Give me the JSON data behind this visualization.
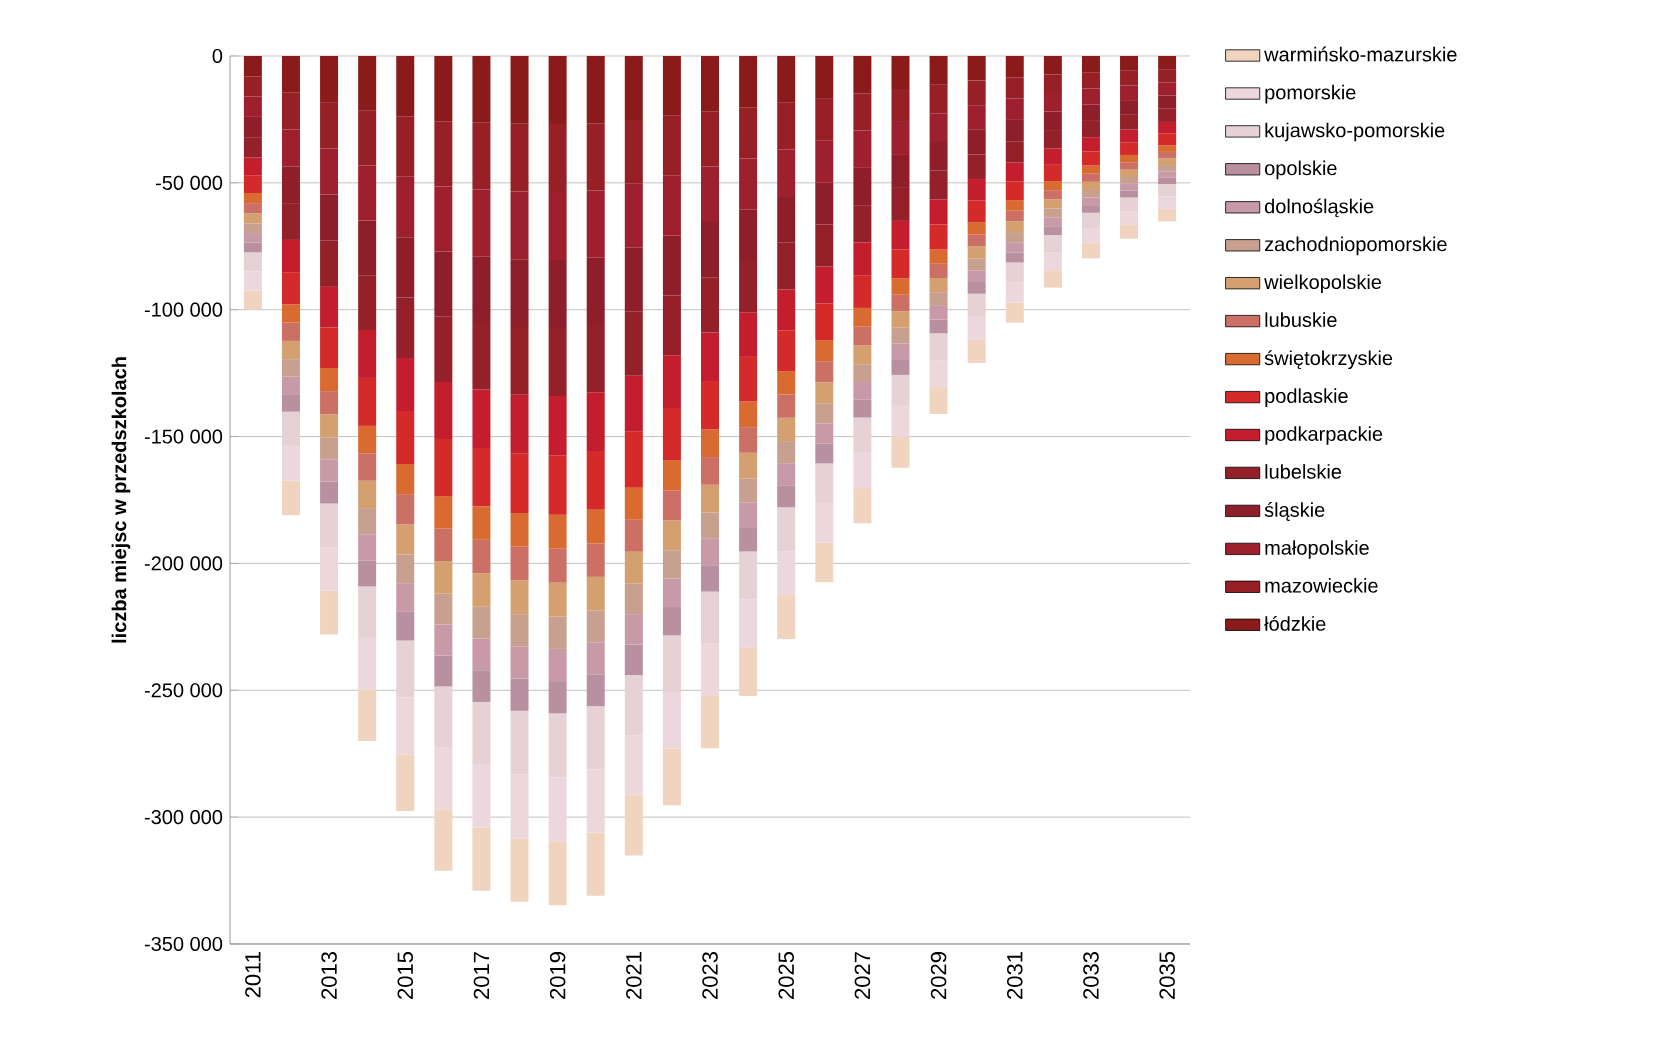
{
  "chart_data": {
    "type": "bar",
    "stacked": true,
    "ylabel": "liczba miejsc w przedszkolach",
    "categories": [
      "2011",
      null,
      "2013",
      null,
      "2015",
      null,
      "2017",
      null,
      "2019",
      null,
      "2021",
      null,
      "2023",
      null,
      "2025",
      null,
      "2027",
      null,
      "2029",
      null,
      "2031",
      null,
      "2033",
      null,
      "2035"
    ],
    "ylim": [
      -350000,
      0
    ],
    "yticks": [
      {
        "value": -350000,
        "label": "-350 000"
      },
      {
        "value": -300000,
        "label": "-300 000"
      },
      {
        "value": -250000,
        "label": "-250 000"
      },
      {
        "value": -200000,
        "label": "-200 000"
      },
      {
        "value": -150000,
        "label": "-150 000"
      },
      {
        "value": -100000,
        "label": "-100 000"
      },
      {
        "value": -50000,
        "label": "-50 000"
      },
      0
    ],
    "grid": "y",
    "legend": "right",
    "series": [
      {
        "name": "łódzkie",
        "color": "#8b1a1a",
        "values": [
          -8000,
          -14500,
          -18200,
          -21600,
          -23800,
          -25700,
          -26300,
          -26700,
          -26800,
          -26500,
          -25200,
          -23600,
          -21800,
          -20200,
          -18400,
          -16600,
          -14700,
          -13000,
          -11300,
          -9700,
          -8400,
          -7300,
          -6400,
          -5800,
          -5200
        ]
      },
      {
        "name": "mazowieckie",
        "color": "#962026",
        "values": [
          -8000,
          -14500,
          -18200,
          -21600,
          -23800,
          -25700,
          -26300,
          -26700,
          -26800,
          -26500,
          -25200,
          -23600,
          -21800,
          -20200,
          -18400,
          -16600,
          -14700,
          -13000,
          -11300,
          -9700,
          -8400,
          -7300,
          -6400,
          -5800,
          -5200
        ]
      },
      {
        "name": "małopolskie",
        "color": "#9e1f2e",
        "values": [
          -8000,
          -14500,
          -18200,
          -21600,
          -23800,
          -25700,
          -26300,
          -26700,
          -26800,
          -26500,
          -25200,
          -23600,
          -21800,
          -20200,
          -18400,
          -16600,
          -14700,
          -13000,
          -11300,
          -9700,
          -8400,
          -7300,
          -6400,
          -5800,
          -5200
        ]
      },
      {
        "name": "śląskie",
        "color": "#8e1f2a",
        "values": [
          -8000,
          -14500,
          -18200,
          -21600,
          -23800,
          -25700,
          -26300,
          -26700,
          -26800,
          -26500,
          -25200,
          -23600,
          -21800,
          -20200,
          -18400,
          -16600,
          -14700,
          -13000,
          -11300,
          -9700,
          -8400,
          -7300,
          -6400,
          -5800,
          -5200
        ]
      },
      {
        "name": "lubelskie",
        "color": "#94202a",
        "values": [
          -8000,
          -14500,
          -18200,
          -21600,
          -23800,
          -25700,
          -26300,
          -26700,
          -26800,
          -26500,
          -25200,
          -23600,
          -21800,
          -20200,
          -18400,
          -16600,
          -14700,
          -13000,
          -11300,
          -9700,
          -8400,
          -7300,
          -6400,
          -5800,
          -5200
        ]
      },
      {
        "name": "podkarpackie",
        "color": "#c41e2e",
        "values": [
          -7000,
          -12700,
          -16000,
          -18900,
          -20900,
          -22500,
          -23000,
          -23300,
          -23400,
          -23200,
          -22100,
          -20700,
          -19100,
          -17600,
          -16100,
          -14500,
          -12900,
          -11300,
          -9900,
          -8500,
          -7400,
          -6400,
          -5600,
          -5000,
          -4600
        ]
      },
      {
        "name": "podlaskie",
        "color": "#d42a2a",
        "values": [
          -7000,
          -12700,
          -16000,
          -18900,
          -20900,
          -22500,
          -23000,
          -23300,
          -23400,
          -23200,
          -22100,
          -20700,
          -19100,
          -17600,
          -16100,
          -14500,
          -12900,
          -11300,
          -9900,
          -8500,
          -7400,
          -6400,
          -5600,
          -5000,
          -4600
        ]
      },
      {
        "name": "świętokrzyskie",
        "color": "#d96a30",
        "values": [
          -4000,
          -7200,
          -9100,
          -10800,
          -11900,
          -12800,
          -13200,
          -13300,
          -13400,
          -13200,
          -12600,
          -11800,
          -10900,
          -10100,
          -9200,
          -8300,
          -7400,
          -6500,
          -5600,
          -4800,
          -4200,
          -3600,
          -3200,
          -2900,
          -2600
        ]
      },
      {
        "name": "lubuskie",
        "color": "#cc7066",
        "values": [
          -4000,
          -7200,
          -9100,
          -10800,
          -11900,
          -12800,
          -13200,
          -13300,
          -13400,
          -13200,
          -12600,
          -11800,
          -10900,
          -10100,
          -9200,
          -8300,
          -7400,
          -6500,
          -5600,
          -4800,
          -4200,
          -3600,
          -3200,
          -2900,
          -2600
        ]
      },
      {
        "name": "wielkopolskie",
        "color": "#d4a070",
        "values": [
          -4000,
          -7200,
          -9100,
          -10800,
          -11900,
          -12800,
          -13200,
          -13300,
          -13400,
          -13200,
          -12600,
          -11800,
          -10900,
          -10100,
          -9200,
          -8300,
          -7400,
          -6500,
          -5600,
          -4800,
          -4200,
          -3600,
          -3200,
          -2900,
          -2600
        ]
      },
      {
        "name": "zachodniopomorskie",
        "color": "#c8a090",
        "values": [
          -3800,
          -6900,
          -8700,
          -10300,
          -11300,
          -12200,
          -12500,
          -12700,
          -12700,
          -12600,
          -12000,
          -11200,
          -10400,
          -9600,
          -8700,
          -7900,
          -7000,
          -6200,
          -5400,
          -4600,
          -4000,
          -3500,
          -3000,
          -2700,
          -2500
        ]
      },
      {
        "name": "dolnośląskie",
        "color": "#c89aa8",
        "values": [
          -3800,
          -6900,
          -8700,
          -10300,
          -11300,
          -12200,
          -12500,
          -12700,
          -12700,
          -12600,
          -12000,
          -11200,
          -10400,
          -9600,
          -8700,
          -7900,
          -7000,
          -6200,
          -5400,
          -4600,
          -4000,
          -3500,
          -3000,
          -2700,
          -2500
        ]
      },
      {
        "name": "opolskie",
        "color": "#b890a0",
        "values": [
          -3800,
          -6900,
          -8700,
          -10300,
          -11300,
          -12200,
          -12500,
          -12700,
          -12700,
          -12600,
          -12000,
          -11200,
          -10400,
          -9600,
          -8700,
          -7900,
          -7000,
          -6200,
          -5400,
          -4600,
          -4000,
          -3500,
          -3000,
          -2700,
          -2500
        ]
      },
      {
        "name": "kujawsko-pomorskie",
        "color": "#e6d2d4",
        "values": [
          -7500,
          -13600,
          -17200,
          -20300,
          -22400,
          -24200,
          -24800,
          -25100,
          -25200,
          -24900,
          -23700,
          -22300,
          -20600,
          -19000,
          -17300,
          -15600,
          -13900,
          -12200,
          -10600,
          -9100,
          -7900,
          -6900,
          -6000,
          -5400,
          -4900
        ]
      },
      {
        "name": "pomorskie",
        "color": "#ecd8dc",
        "values": [
          -7500,
          -13600,
          -17200,
          -20300,
          -22400,
          -24200,
          -24800,
          -25100,
          -25200,
          -24900,
          -23700,
          -22300,
          -20600,
          -19000,
          -17300,
          -15600,
          -13900,
          -12200,
          -10600,
          -9100,
          -7900,
          -6900,
          -6000,
          -5400,
          -4900
        ]
      },
      {
        "name": "warmińsko-mazurskie",
        "color": "#f0d4c0",
        "values": [
          -7500,
          -13600,
          -17200,
          -20300,
          -22400,
          -24200,
          -24800,
          -25100,
          -25200,
          -24900,
          -23700,
          -22300,
          -20600,
          -19000,
          -17300,
          -15600,
          -13900,
          -12200,
          -10600,
          -9100,
          -7900,
          -6900,
          -6000,
          -5400,
          -4900
        ]
      }
    ]
  }
}
